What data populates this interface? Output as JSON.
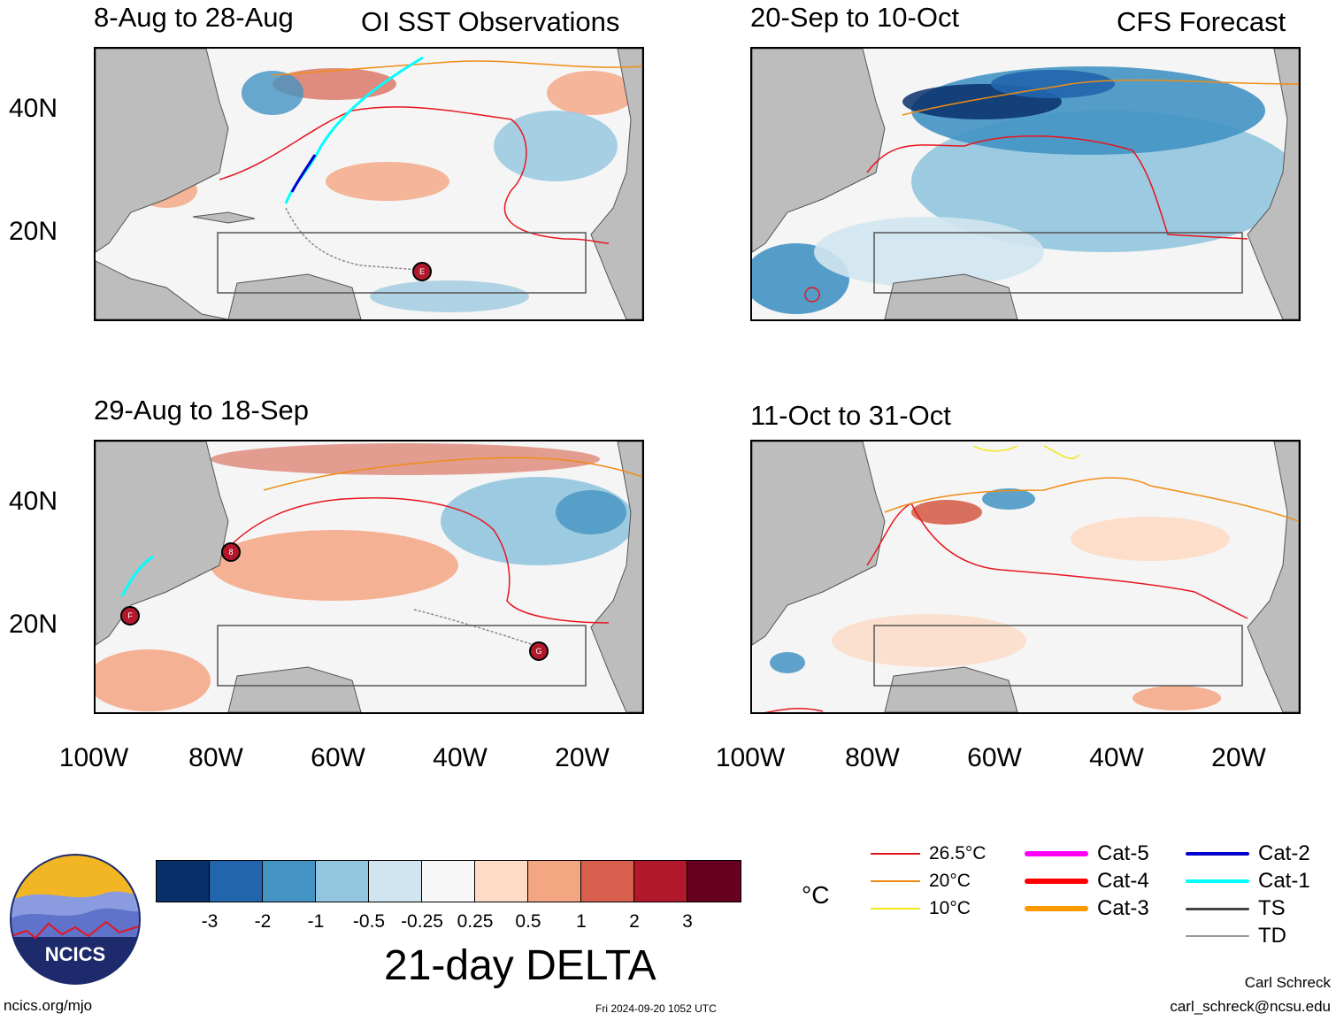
{
  "panels": [
    {
      "title_left": "8-Aug to 28-Aug",
      "title_right": "OI SST Observations"
    },
    {
      "title_left": "20-Sep to 10-Oct",
      "title_right": "CFS Forecast"
    },
    {
      "title_left": "29-Aug to 18-Sep",
      "title_right": ""
    },
    {
      "title_left": "11-Oct to 31-Oct",
      "title_right": ""
    }
  ],
  "axes": {
    "lat_labels": [
      "40N",
      "20N"
    ],
    "lon_labels": [
      "100W",
      "80W",
      "60W",
      "40W",
      "20W"
    ]
  },
  "storm_markers": [
    "E",
    "8",
    "F",
    "G"
  ],
  "colorbar": {
    "colors": [
      "#08306b",
      "#2166ac",
      "#4393c3",
      "#92c5de",
      "#d1e5f0",
      "#f7f7f7",
      "#fddbc7",
      "#f4a582",
      "#d6604d",
      "#b2182b",
      "#67001f"
    ],
    "ticks": [
      "-3",
      "-2",
      "-1",
      "-0.5",
      "-0.25",
      "0.25",
      "0.5",
      "1",
      "2",
      "3"
    ],
    "title": "21-day DELTA"
  },
  "legend": {
    "unit": "°C",
    "isotherms": [
      {
        "label": "26.5°C",
        "color": "#e8141e"
      },
      {
        "label": "20°C",
        "color": "#f08c14"
      },
      {
        "label": "10°C",
        "color": "#f0e614"
      }
    ],
    "tracks": [
      {
        "label": "Cat-5",
        "color": "#ff00ff"
      },
      {
        "label": "Cat-4",
        "color": "#ff0000"
      },
      {
        "label": "Cat-3",
        "color": "#ff9900"
      },
      {
        "label": "Cat-2",
        "color": "#0000cc"
      },
      {
        "label": "Cat-1",
        "color": "#00ffff"
      },
      {
        "label": "TS",
        "color": "#444444"
      },
      {
        "label": "TD",
        "color": "#999999"
      }
    ]
  },
  "footer": {
    "logo_text": "NCICS",
    "website": "ncics.org/mjo",
    "timestamp": "Fri 2024-09-20 1052 UTC",
    "author": "Carl Schreck",
    "email": "carl_schreck@ncsu.edu"
  }
}
